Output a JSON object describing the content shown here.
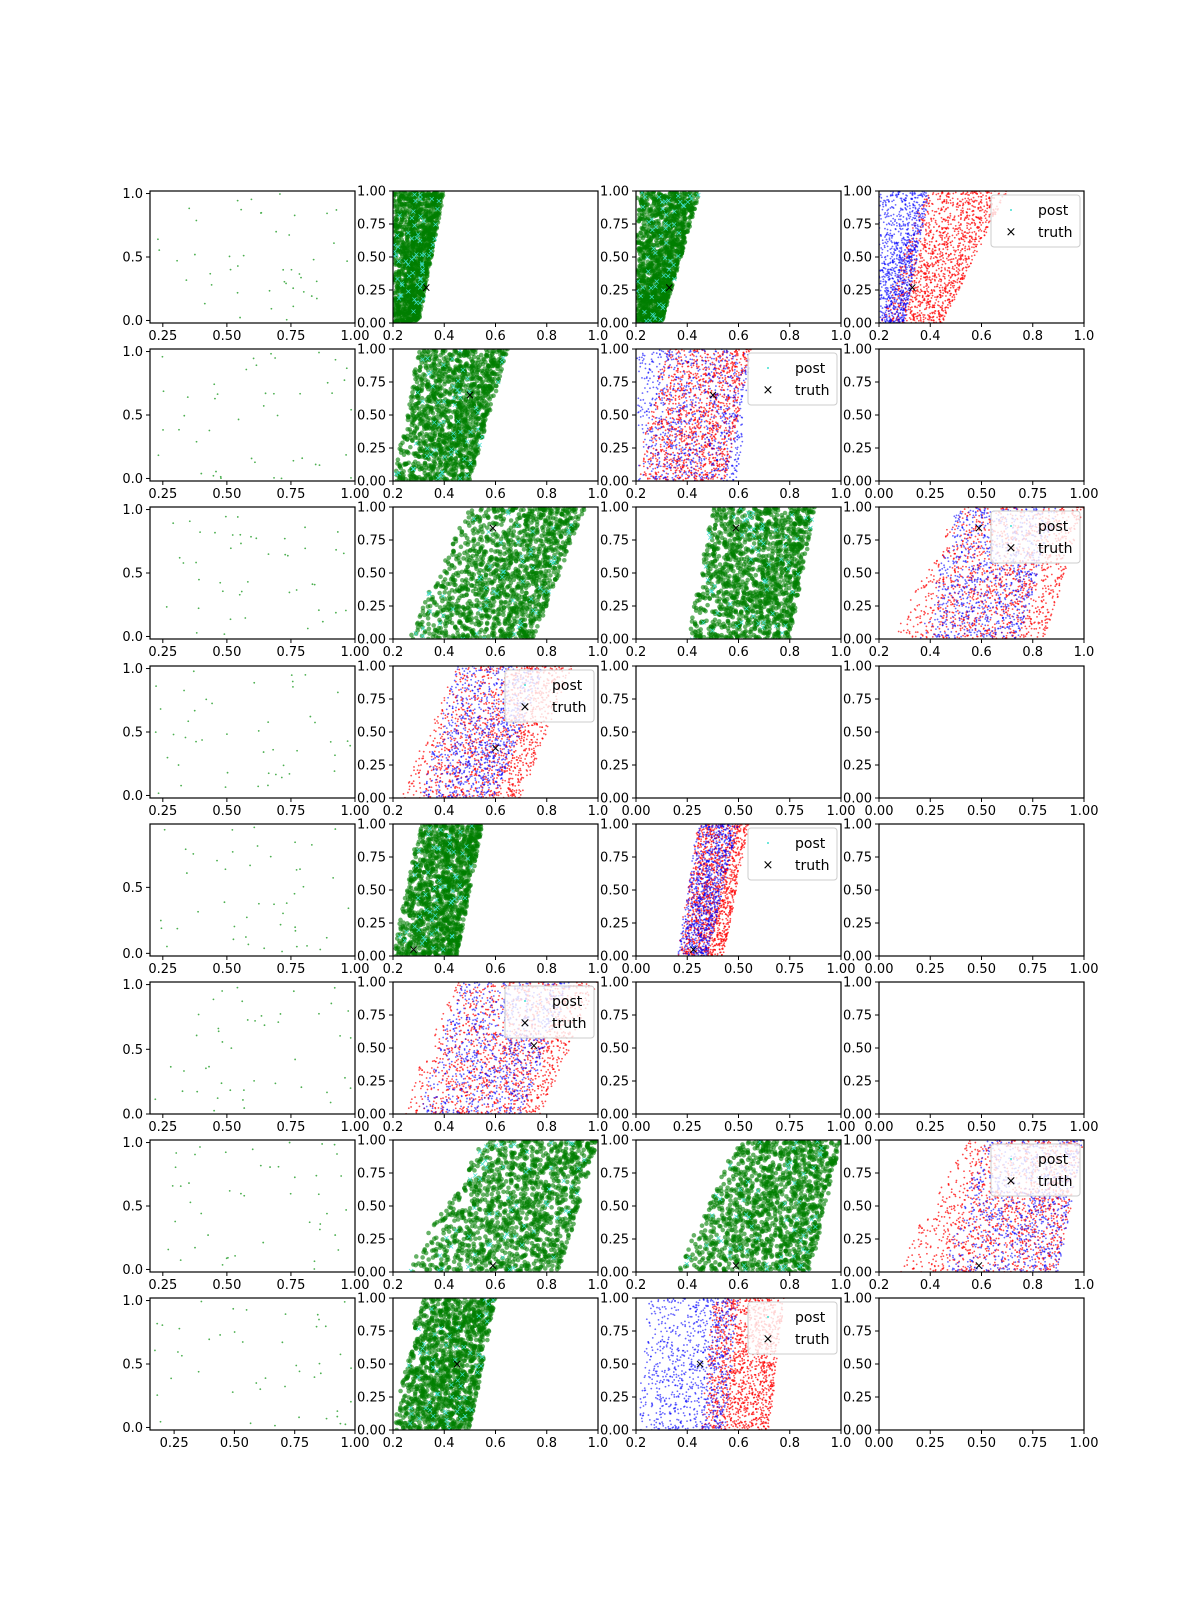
{
  "figure": {
    "rows": 8,
    "cols": 4,
    "marker_colors": {
      "prior": "#4caf50",
      "post_green": "#007f00",
      "post_cyan": "#40e0d0",
      "post_blue": "#0000ff",
      "post_red": "#ff0000",
      "truth": "#000000"
    },
    "legend": {
      "post": "post",
      "truth": "truth"
    }
  },
  "chart_data": {
    "type": "scatter",
    "grid": false,
    "legend_placement": "upper right",
    "panels": [
      {
        "row": 0,
        "col": 0,
        "kind": "prior",
        "x_ticks": [
          "0.25",
          "0.50",
          "0.75",
          "1.00"
        ],
        "y_ticks": [
          "0.0",
          "0.5",
          "1.0"
        ],
        "xlim": [
          0.2,
          1.0
        ],
        "ylim": [
          -0.02,
          1.02
        ]
      },
      {
        "row": 0,
        "col": 1,
        "kind": "green",
        "band": [
          0.2,
          0.3,
          0.2,
          0.4
        ],
        "truth": [
          0.33,
          0.27
        ],
        "x_ticks": [
          "0.2",
          "0.4",
          "0.6",
          "0.8",
          "1.0"
        ],
        "y_ticks": [
          "0.00",
          "0.25",
          "0.50",
          "0.75",
          "1.00"
        ],
        "xlim": [
          0.2,
          1.0
        ],
        "ylim": [
          0,
          1
        ]
      },
      {
        "row": 0,
        "col": 2,
        "kind": "green",
        "band": [
          0.2,
          0.3,
          0.2,
          0.45
        ],
        "truth": [
          0.33,
          0.27
        ],
        "x_ticks": [
          "0.2",
          "0.4",
          "0.6",
          "0.8",
          "1.0"
        ],
        "y_ticks": [
          "0.00",
          "0.25",
          "0.50",
          "0.75",
          "1.00"
        ],
        "xlim": [
          0.2,
          1.0
        ],
        "ylim": [
          0,
          1
        ]
      },
      {
        "row": 0,
        "col": 3,
        "kind": "redblue",
        "band": [
          0.2,
          0.45,
          0.38,
          0.7
        ],
        "blue": [
          0.2,
          0.3,
          0.2,
          0.4
        ],
        "truth": [
          0.33,
          0.27
        ],
        "legend": true,
        "x_ticks": [
          "0.2",
          "0.4",
          "0.6",
          "0.8",
          "1.0"
        ],
        "y_ticks": [
          "0.00",
          "0.25",
          "0.50",
          "0.75",
          "1.00"
        ],
        "xlim": [
          0.2,
          1.0
        ],
        "ylim": [
          0,
          1
        ]
      },
      {
        "row": 1,
        "col": 0,
        "kind": "prior",
        "x_ticks": [
          "0.25",
          "0.50",
          "0.75",
          "1.00"
        ],
        "y_ticks": [
          "0.0",
          "0.5",
          "1.0"
        ],
        "xlim": [
          0.2,
          1.0
        ],
        "ylim": [
          -0.02,
          1.02
        ]
      },
      {
        "row": 1,
        "col": 1,
        "kind": "green",
        "band": [
          0.2,
          0.5,
          0.3,
          0.65
        ],
        "truth": [
          0.5,
          0.65
        ],
        "x_ticks": [
          "0.2",
          "0.4",
          "0.6",
          "0.8",
          "1.0"
        ],
        "y_ticks": [
          "0.00",
          "0.25",
          "0.50",
          "0.75",
          "1.00"
        ],
        "xlim": [
          0.2,
          1.0
        ],
        "ylim": [
          0,
          1
        ]
      },
      {
        "row": 1,
        "col": 2,
        "kind": "redblue",
        "band": [
          0.2,
          0.55,
          0.3,
          0.65
        ],
        "blue": [
          0.2,
          0.6,
          0.2,
          0.65
        ],
        "truth": [
          0.5,
          0.65
        ],
        "legend": true,
        "x_ticks": [
          "0.2",
          "0.4",
          "0.6",
          "0.8",
          "1.0"
        ],
        "y_ticks": [
          "0.00",
          "0.25",
          "0.50",
          "0.75",
          "1.00"
        ],
        "xlim": [
          0.2,
          1.0
        ],
        "ylim": [
          0,
          1
        ]
      },
      {
        "row": 1,
        "col": 3,
        "kind": "empty",
        "x_ticks": [
          "0.00",
          "0.25",
          "0.50",
          "0.75",
          "1.00"
        ],
        "y_ticks": [
          "0.00",
          "0.25",
          "0.50",
          "0.75",
          "1.00"
        ],
        "xlim": [
          0,
          1
        ],
        "ylim": [
          0,
          1
        ]
      },
      {
        "row": 2,
        "col": 0,
        "kind": "prior",
        "x_ticks": [
          "0.25",
          "0.50",
          "0.75",
          "1.00"
        ],
        "y_ticks": [
          "0.0",
          "0.5",
          "1.0"
        ],
        "xlim": [
          0.2,
          1.0
        ],
        "ylim": [
          -0.02,
          1.02
        ]
      },
      {
        "row": 2,
        "col": 1,
        "kind": "green",
        "band": [
          0.25,
          0.75,
          0.5,
          0.95
        ],
        "truth": [
          0.59,
          0.84
        ],
        "x_ticks": [
          "0.2",
          "0.4",
          "0.6",
          "0.8",
          "1.0"
        ],
        "y_ticks": [
          "0.00",
          "0.25",
          "0.50",
          "0.75",
          "1.00"
        ],
        "xlim": [
          0.2,
          1.0
        ],
        "ylim": [
          0,
          1
        ]
      },
      {
        "row": 2,
        "col": 2,
        "kind": "green",
        "band": [
          0.4,
          0.8,
          0.5,
          0.9
        ],
        "truth": [
          0.59,
          0.84
        ],
        "x_ticks": [
          "0.2",
          "0.4",
          "0.6",
          "0.8",
          "1.0"
        ],
        "y_ticks": [
          "0.00",
          "0.25",
          "0.50",
          "0.75",
          "1.00"
        ],
        "xlim": [
          0.2,
          1.0
        ],
        "ylim": [
          0,
          1
        ]
      },
      {
        "row": 2,
        "col": 3,
        "kind": "redblue",
        "band": [
          0.25,
          0.85,
          0.5,
          1.0
        ],
        "blue": [
          0.35,
          0.75,
          0.5,
          0.9
        ],
        "truth": [
          0.59,
          0.84
        ],
        "legend": true,
        "x_ticks": [
          "0.2",
          "0.4",
          "0.6",
          "0.8",
          "1.0"
        ],
        "y_ticks": [
          "0.00",
          "0.25",
          "0.50",
          "0.75",
          "1.00"
        ],
        "xlim": [
          0.2,
          1.0
        ],
        "ylim": [
          0,
          1
        ]
      },
      {
        "row": 3,
        "col": 0,
        "kind": "prior",
        "x_ticks": [
          "0.25",
          "0.50",
          "0.75",
          "1.00"
        ],
        "y_ticks": [
          "0.0",
          "0.5",
          "1.0"
        ],
        "xlim": [
          0.2,
          1.0
        ],
        "ylim": [
          -0.02,
          1.02
        ]
      },
      {
        "row": 3,
        "col": 1,
        "kind": "redblue",
        "band": [
          0.22,
          0.7,
          0.45,
          0.9
        ],
        "blue": [
          0.3,
          0.6,
          0.45,
          0.8
        ],
        "truth": [
          0.6,
          0.38
        ],
        "legend": true,
        "x_ticks": [
          "0.2",
          "0.4",
          "0.6",
          "0.8",
          "1.0"
        ],
        "y_ticks": [
          "0.00",
          "0.25",
          "0.50",
          "0.75",
          "1.00"
        ],
        "xlim": [
          0.2,
          1.0
        ],
        "ylim": [
          0,
          1
        ]
      },
      {
        "row": 3,
        "col": 2,
        "kind": "empty",
        "x_ticks": [
          "0.00",
          "0.25",
          "0.50",
          "0.75",
          "1.00"
        ],
        "y_ticks": [
          "0.00",
          "0.25",
          "0.50",
          "0.75",
          "1.00"
        ],
        "xlim": [
          0,
          1
        ],
        "ylim": [
          0,
          1
        ]
      },
      {
        "row": 3,
        "col": 3,
        "kind": "empty",
        "x_ticks": [
          "0.00",
          "0.25",
          "0.50",
          "0.75",
          "1.00"
        ],
        "y_ticks": [
          "0.00",
          "0.25",
          "0.50",
          "0.75",
          "1.00"
        ],
        "xlim": [
          0,
          1
        ],
        "ylim": [
          0,
          1
        ]
      },
      {
        "row": 4,
        "col": 0,
        "kind": "prior",
        "x_ticks": [
          "0.25",
          "0.50",
          "0.75",
          "1.00"
        ],
        "y_ticks": [
          "0.0",
          "0.5"
        ],
        "xlim": [
          0.2,
          1.0
        ],
        "ylim": [
          -0.02,
          0.98
        ]
      },
      {
        "row": 4,
        "col": 1,
        "kind": "green",
        "band": [
          0.2,
          0.45,
          0.3,
          0.55
        ],
        "truth": [
          0.28,
          0.05
        ],
        "x_ticks": [
          "0.2",
          "0.4",
          "0.6",
          "0.8",
          "1.0"
        ],
        "y_ticks": [
          "0.00",
          "0.25",
          "0.50",
          "0.75",
          "1.00"
        ],
        "xlim": [
          0.2,
          1.0
        ],
        "ylim": [
          0,
          1
        ]
      },
      {
        "row": 4,
        "col": 2,
        "kind": "redblue",
        "band": [
          0.2,
          0.43,
          0.3,
          0.55
        ],
        "blue": [
          0.2,
          0.35,
          0.3,
          0.5
        ],
        "truth": [
          0.28,
          0.05
        ],
        "legend": true,
        "x_ticks": [
          "0.00",
          "0.25",
          "0.50",
          "0.75",
          "1.00"
        ],
        "y_ticks": [
          "0.00",
          "0.25",
          "0.50",
          "0.75",
          "1.00"
        ],
        "xlim": [
          0,
          1
        ],
        "ylim": [
          0,
          1
        ]
      },
      {
        "row": 4,
        "col": 3,
        "kind": "empty",
        "x_ticks": [
          "0.00",
          "0.25",
          "0.50",
          "0.75",
          "1.00"
        ],
        "y_ticks": [
          "0.00",
          "0.25",
          "0.50",
          "0.75",
          "1.00"
        ],
        "xlim": [
          0,
          1
        ],
        "ylim": [
          0,
          1
        ]
      },
      {
        "row": 5,
        "col": 0,
        "kind": "prior",
        "x_ticks": [
          "0.25",
          "0.50",
          "0.75",
          "1.00"
        ],
        "y_ticks": [
          "0.0",
          "0.5",
          "1.0"
        ],
        "xlim": [
          0.2,
          1.0
        ],
        "ylim": [
          0,
          1.02
        ]
      },
      {
        "row": 5,
        "col": 1,
        "kind": "redblue",
        "band": [
          0.22,
          0.78,
          0.45,
          1.0
        ],
        "blue": [
          0.3,
          0.7,
          0.45,
          0.9
        ],
        "truth": [
          0.75,
          0.52
        ],
        "legend": true,
        "x_ticks": [
          "0.2",
          "0.4",
          "0.6",
          "0.8",
          "1.0"
        ],
        "y_ticks": [
          "0.00",
          "0.25",
          "0.50",
          "0.75",
          "1.00"
        ],
        "xlim": [
          0.2,
          1.0
        ],
        "ylim": [
          0,
          1
        ]
      },
      {
        "row": 5,
        "col": 2,
        "kind": "empty",
        "x_ticks": [
          "0.00",
          "0.25",
          "0.50",
          "0.75",
          "1.00"
        ],
        "y_ticks": [
          "0.00",
          "0.25",
          "0.50",
          "0.75",
          "1.00"
        ],
        "xlim": [
          0,
          1
        ],
        "ylim": [
          0,
          1
        ]
      },
      {
        "row": 5,
        "col": 3,
        "kind": "empty",
        "x_ticks": [
          "0.00",
          "0.25",
          "0.50",
          "0.75",
          "1.00"
        ],
        "y_ticks": [
          "0.00",
          "0.25",
          "0.50",
          "0.75",
          "1.00"
        ],
        "xlim": [
          0,
          1
        ],
        "ylim": [
          0,
          1
        ]
      },
      {
        "row": 6,
        "col": 0,
        "kind": "prior",
        "x_ticks": [
          "0.25",
          "0.50",
          "0.75",
          "1.00"
        ],
        "y_ticks": [
          "0.0",
          "0.5",
          "1.0"
        ],
        "xlim": [
          0.2,
          1.0
        ],
        "ylim": [
          -0.02,
          1.02
        ]
      },
      {
        "row": 6,
        "col": 1,
        "kind": "green",
        "band": [
          0.25,
          0.85,
          0.55,
          1.0
        ],
        "truth": [
          0.59,
          0.05
        ],
        "x_ticks": [
          "0.2",
          "0.4",
          "0.6",
          "0.8",
          "1.0"
        ],
        "y_ticks": [
          "0.00",
          "0.25",
          "0.50",
          "0.75",
          "1.00"
        ],
        "xlim": [
          0.2,
          1.0
        ],
        "ylim": [
          0,
          1
        ]
      },
      {
        "row": 6,
        "col": 2,
        "kind": "green",
        "band": [
          0.35,
          0.88,
          0.6,
          1.0
        ],
        "truth": [
          0.59,
          0.05
        ],
        "x_ticks": [
          "0.2",
          "0.4",
          "0.6",
          "0.8",
          "1.0"
        ],
        "y_ticks": [
          "0.00",
          "0.25",
          "0.50",
          "0.75",
          "1.00"
        ],
        "xlim": [
          0.2,
          1.0
        ],
        "ylim": [
          0,
          1
        ]
      },
      {
        "row": 6,
        "col": 3,
        "kind": "redblue",
        "band": [
          0.25,
          0.9,
          0.55,
          1.0
        ],
        "blue": [
          0.45,
          0.9,
          0.6,
          1.0
        ],
        "truth": [
          0.59,
          0.05
        ],
        "legend": true,
        "x_ticks": [
          "0.2",
          "0.4",
          "0.6",
          "0.8",
          "1.0"
        ],
        "y_ticks": [
          "0.00",
          "0.25",
          "0.50",
          "0.75",
          "1.00"
        ],
        "xlim": [
          0.2,
          1.0
        ],
        "ylim": [
          0,
          1
        ]
      },
      {
        "row": 7,
        "col": 0,
        "kind": "prior",
        "x_ticks": [
          "0.25",
          "0.50",
          "0.75",
          "1.00"
        ],
        "y_ticks": [
          "0.0",
          "0.5",
          "1.0"
        ],
        "xlim": [
          0.15,
          1.0
        ],
        "ylim": [
          -0.02,
          1.02
        ]
      },
      {
        "row": 7,
        "col": 1,
        "kind": "green",
        "band": [
          0.2,
          0.5,
          0.3,
          0.6
        ],
        "truth": [
          0.45,
          0.5
        ],
        "x_ticks": [
          "0.2",
          "0.4",
          "0.6",
          "0.8",
          "1.0"
        ],
        "y_ticks": [
          "0.00",
          "0.25",
          "0.50",
          "0.75",
          "1.00"
        ],
        "xlim": [
          0.2,
          1.0
        ],
        "ylim": [
          0,
          1
        ]
      },
      {
        "row": 7,
        "col": 2,
        "kind": "redblue",
        "band": [
          0.45,
          0.72,
          0.5,
          0.78
        ],
        "blue": [
          0.2,
          0.55,
          0.25,
          0.6
        ],
        "truth": [
          0.45,
          0.5
        ],
        "legend": true,
        "x_ticks": [
          "0.2",
          "0.4",
          "0.6",
          "0.8",
          "1.0"
        ],
        "y_ticks": [
          "0.00",
          "0.25",
          "0.50",
          "0.75",
          "1.00"
        ],
        "xlim": [
          0.2,
          1.0
        ],
        "ylim": [
          0,
          1
        ]
      },
      {
        "row": 7,
        "col": 3,
        "kind": "empty",
        "x_ticks": [
          "0.00",
          "0.25",
          "0.50",
          "0.75",
          "1.00"
        ],
        "y_ticks": [
          "0.00",
          "0.25",
          "0.50",
          "0.75",
          "1.00"
        ],
        "xlim": [
          0,
          1
        ],
        "ylim": [
          0,
          1
        ]
      }
    ]
  }
}
